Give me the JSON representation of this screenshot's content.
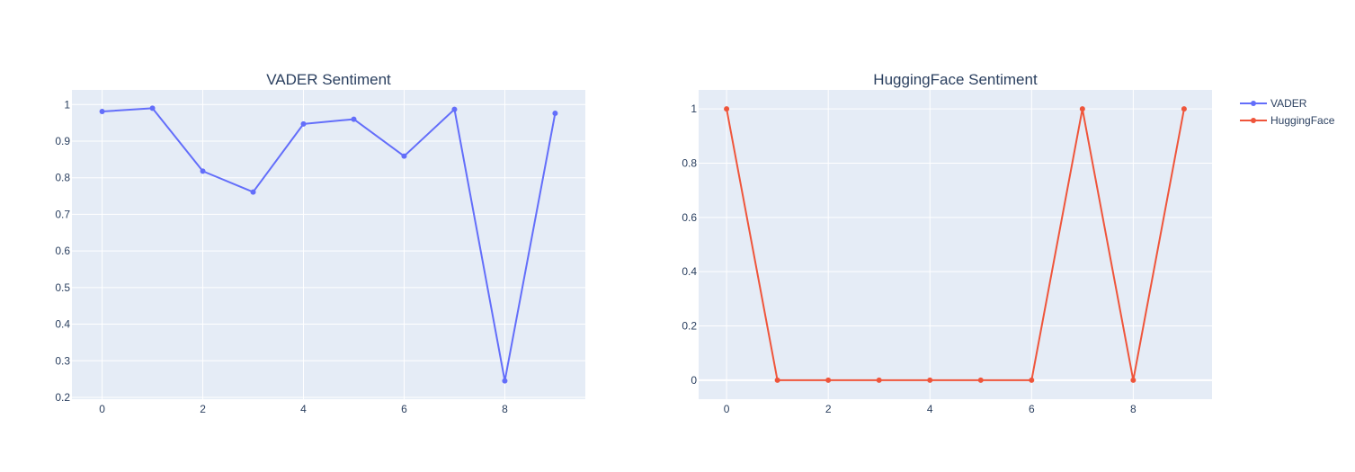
{
  "chart_data": [
    {
      "type": "line",
      "title": "VADER Sentiment",
      "xlabel": "",
      "ylabel": "",
      "x": [
        0,
        1,
        2,
        3,
        4,
        5,
        6,
        7,
        8,
        9
      ],
      "xlim": [
        -0.6,
        9.6
      ],
      "ylim": [
        0.195,
        1.04
      ],
      "xticks": [
        0,
        2,
        4,
        6,
        8
      ],
      "yticks": [
        0.2,
        0.3,
        0.4,
        0.5,
        0.6,
        0.7,
        0.8,
        0.9,
        1
      ],
      "series": [
        {
          "name": "VADER",
          "color": "#636efa",
          "values": [
            0.981,
            0.99,
            0.818,
            0.761,
            0.947,
            0.96,
            0.859,
            0.987,
            0.245,
            0.976
          ]
        }
      ]
    },
    {
      "type": "line",
      "title": "HuggingFace Sentiment",
      "xlabel": "",
      "ylabel": "",
      "x": [
        0,
        1,
        2,
        3,
        4,
        5,
        6,
        7,
        8,
        9
      ],
      "xlim": [
        -0.55,
        9.55
      ],
      "ylim": [
        -0.07,
        1.07
      ],
      "xticks": [
        0,
        2,
        4,
        6,
        8
      ],
      "yticks": [
        0,
        0.2,
        0.4,
        0.6,
        0.8,
        1
      ],
      "series": [
        {
          "name": "HuggingFace",
          "color": "#ef553b",
          "values": [
            1,
            0,
            0,
            0,
            0,
            0,
            0,
            1,
            0,
            1
          ]
        }
      ]
    }
  ],
  "legend": {
    "placement": "top-right",
    "items": [
      {
        "name": "VADER",
        "color": "#636efa"
      },
      {
        "name": "HuggingFace",
        "color": "#ef553b"
      }
    ]
  }
}
